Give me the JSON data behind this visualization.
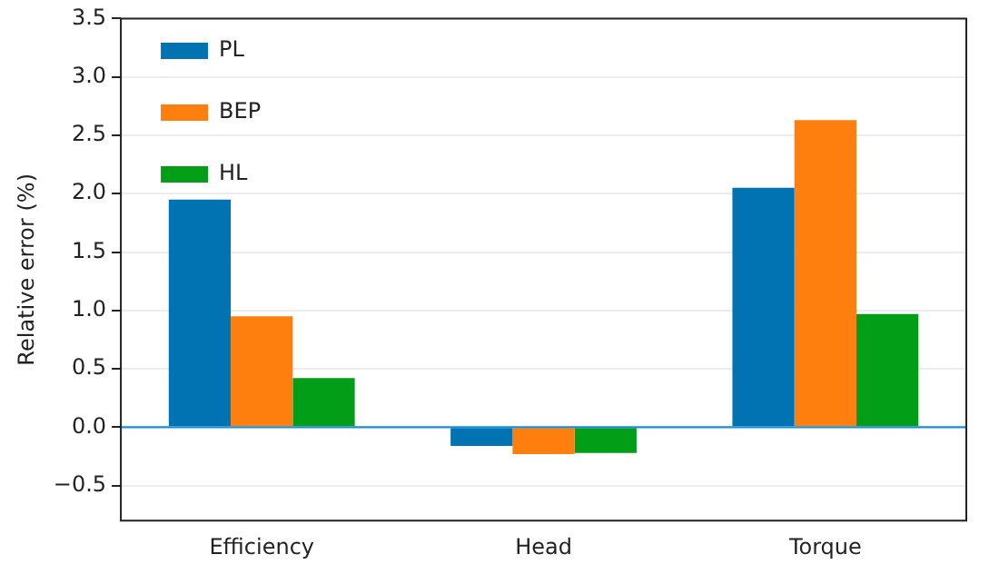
{
  "chart_data": {
    "type": "bar",
    "ylabel": "Relative error (%)",
    "categories": [
      "Efficiency",
      "Head",
      "Torque"
    ],
    "series": [
      {
        "name": "PL",
        "color": "#0173b2",
        "values": [
          1.95,
          -0.16,
          2.05
        ]
      },
      {
        "name": "BEP",
        "color": "#ff7f0e",
        "values": [
          0.95,
          -0.23,
          2.63
        ]
      },
      {
        "name": "HL",
        "color": "#029e18",
        "values": [
          0.42,
          -0.22,
          0.97
        ]
      }
    ],
    "ylim": [
      -0.8,
      3.5
    ],
    "yticks": [
      {
        "value": -0.5,
        "label": "−0.5"
      },
      {
        "value": 0,
        "label": "0.0"
      },
      {
        "value": 0.5,
        "label": "0.5"
      },
      {
        "value": 1,
        "label": "1.0"
      },
      {
        "value": 1.5,
        "label": "1.5"
      },
      {
        "value": 2,
        "label": "2.0"
      },
      {
        "value": 2.5,
        "label": "2.5"
      },
      {
        "value": 3,
        "label": "3.0"
      },
      {
        "value": 3.5,
        "label": "3.5"
      }
    ],
    "ref_lines": [
      {
        "axis": "y",
        "value": 0,
        "color": "#1a8fd6"
      }
    ],
    "grid": "y",
    "legend": "top left"
  }
}
